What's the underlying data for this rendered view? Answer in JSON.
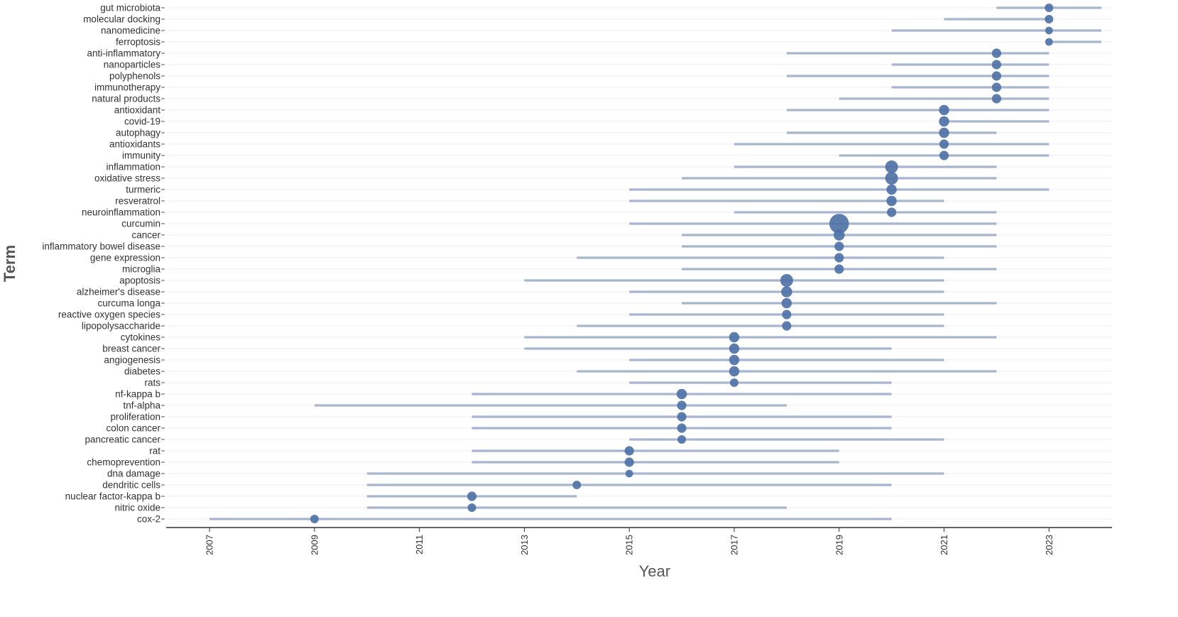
{
  "chart_data": {
    "type": "scatter",
    "xlabel": "Year",
    "ylabel": "Term",
    "x_ticks": [
      2007,
      2009,
      2011,
      2013,
      2015,
      2017,
      2019,
      2021,
      2023
    ],
    "xlim": [
      2006.2,
      2024.2
    ],
    "grid": "horizontal",
    "colors": {
      "range_line": "#a9b4d2",
      "point": "#4f72a6",
      "grid": "#eeeeee",
      "axis": "#333333"
    },
    "terms": [
      {
        "term": "gut microbiota",
        "start": 2022,
        "end": 2024,
        "year": 2023,
        "size": 1.0
      },
      {
        "term": "molecular docking",
        "start": 2021,
        "end": 2023,
        "year": 2023,
        "size": 1.0
      },
      {
        "term": "nanomedicine",
        "start": 2020,
        "end": 2024,
        "year": 2023,
        "size": 0.9
      },
      {
        "term": "ferroptosis",
        "start": 2023,
        "end": 2024,
        "year": 2023,
        "size": 0.9
      },
      {
        "term": "anti-inflammatory",
        "start": 2018,
        "end": 2023,
        "year": 2022,
        "size": 1.1
      },
      {
        "term": "nanoparticles",
        "start": 2020,
        "end": 2023,
        "year": 2022,
        "size": 1.1
      },
      {
        "term": "polyphenols",
        "start": 2018,
        "end": 2023,
        "year": 2022,
        "size": 1.1
      },
      {
        "term": "immunotherapy",
        "start": 2020,
        "end": 2023,
        "year": 2022,
        "size": 1.1
      },
      {
        "term": "natural products",
        "start": 2019,
        "end": 2023,
        "year": 2022,
        "size": 1.1
      },
      {
        "term": "antioxidant",
        "start": 2018,
        "end": 2023,
        "year": 2021,
        "size": 1.2
      },
      {
        "term": "covid-19",
        "start": 2021,
        "end": 2023,
        "year": 2021,
        "size": 1.2
      },
      {
        "term": "autophagy",
        "start": 2018,
        "end": 2022,
        "year": 2021,
        "size": 1.2
      },
      {
        "term": "antioxidants",
        "start": 2017,
        "end": 2023,
        "year": 2021,
        "size": 1.1
      },
      {
        "term": "immunity",
        "start": 2019,
        "end": 2023,
        "year": 2021,
        "size": 1.1
      },
      {
        "term": "inflammation",
        "start": 2017,
        "end": 2022,
        "year": 2020,
        "size": 1.5
      },
      {
        "term": "oxidative stress",
        "start": 2016,
        "end": 2022,
        "year": 2020,
        "size": 1.5
      },
      {
        "term": "turmeric",
        "start": 2015,
        "end": 2023,
        "year": 2020,
        "size": 1.2
      },
      {
        "term": "resveratrol",
        "start": 2015,
        "end": 2021,
        "year": 2020,
        "size": 1.2
      },
      {
        "term": "neuroinflammation",
        "start": 2017,
        "end": 2022,
        "year": 2020,
        "size": 1.1
      },
      {
        "term": "curcumin",
        "start": 2015,
        "end": 2022,
        "year": 2019,
        "size": 2.3
      },
      {
        "term": "cancer",
        "start": 2016,
        "end": 2022,
        "year": 2019,
        "size": 1.3
      },
      {
        "term": "inflammatory bowel disease",
        "start": 2016,
        "end": 2022,
        "year": 2019,
        "size": 1.1
      },
      {
        "term": "gene expression",
        "start": 2014,
        "end": 2021,
        "year": 2019,
        "size": 1.1
      },
      {
        "term": "microglia",
        "start": 2016,
        "end": 2022,
        "year": 2019,
        "size": 1.1
      },
      {
        "term": "apoptosis",
        "start": 2013,
        "end": 2021,
        "year": 2018,
        "size": 1.5
      },
      {
        "term": "alzheimer's disease",
        "start": 2015,
        "end": 2021,
        "year": 2018,
        "size": 1.3
      },
      {
        "term": "curcuma longa",
        "start": 2016,
        "end": 2022,
        "year": 2018,
        "size": 1.2
      },
      {
        "term": "reactive oxygen species",
        "start": 2015,
        "end": 2021,
        "year": 2018,
        "size": 1.1
      },
      {
        "term": "lipopolysaccharide",
        "start": 2014,
        "end": 2021,
        "year": 2018,
        "size": 1.1
      },
      {
        "term": "cytokines",
        "start": 2013,
        "end": 2022,
        "year": 2017,
        "size": 1.2
      },
      {
        "term": "breast cancer",
        "start": 2013,
        "end": 2020,
        "year": 2017,
        "size": 1.2
      },
      {
        "term": "angiogenesis",
        "start": 2015,
        "end": 2021,
        "year": 2017,
        "size": 1.2
      },
      {
        "term": "diabetes",
        "start": 2014,
        "end": 2022,
        "year": 2017,
        "size": 1.2
      },
      {
        "term": "rats",
        "start": 2015,
        "end": 2020,
        "year": 2017,
        "size": 1.0
      },
      {
        "term": "nf-kappa b",
        "start": 2012,
        "end": 2020,
        "year": 2016,
        "size": 1.2
      },
      {
        "term": "tnf-alpha",
        "start": 2009,
        "end": 2018,
        "year": 2016,
        "size": 1.1
      },
      {
        "term": "proliferation",
        "start": 2012,
        "end": 2020,
        "year": 2016,
        "size": 1.1
      },
      {
        "term": "colon cancer",
        "start": 2012,
        "end": 2020,
        "year": 2016,
        "size": 1.1
      },
      {
        "term": "pancreatic cancer",
        "start": 2015,
        "end": 2021,
        "year": 2016,
        "size": 1.0
      },
      {
        "term": "rat",
        "start": 2012,
        "end": 2019,
        "year": 2015,
        "size": 1.1
      },
      {
        "term": "chemoprevention",
        "start": 2012,
        "end": 2019,
        "year": 2015,
        "size": 1.1
      },
      {
        "term": "dna damage",
        "start": 2010,
        "end": 2021,
        "year": 2015,
        "size": 0.9
      },
      {
        "term": "dendritic cells",
        "start": 2010,
        "end": 2020,
        "year": 2014,
        "size": 1.0
      },
      {
        "term": "nuclear factor-kappa b",
        "start": 2010,
        "end": 2014,
        "year": 2012,
        "size": 1.1
      },
      {
        "term": "nitric oxide",
        "start": 2010,
        "end": 2018,
        "year": 2012,
        "size": 1.0
      },
      {
        "term": "cox-2",
        "start": 2007,
        "end": 2020,
        "year": 2009,
        "size": 1.0
      }
    ]
  }
}
